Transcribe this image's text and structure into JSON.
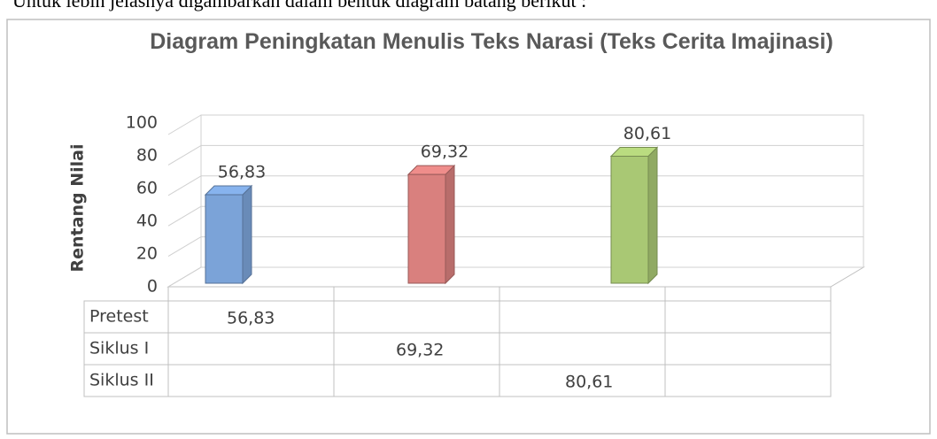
{
  "caption": "Untuk lebih jelasnya digambarkan dalam bentuk diagram batang berikut :",
  "chart_data": {
    "type": "bar",
    "title": "Diagram Peningkatan Menulis Teks Narasi (Teks Cerita Imajinasi)",
    "y_label": "Rentang Nilai",
    "categories": [
      null,
      null,
      null,
      null
    ],
    "series": [
      {
        "name": "Pretest",
        "color": "#7ba3d8",
        "values": [
          56.83,
          null,
          null,
          null
        ],
        "value_labels": [
          "56,83",
          null,
          null,
          null
        ]
      },
      {
        "name": "Siklus I",
        "color": "#d9807e",
        "values": [
          null,
          69.32,
          null,
          null
        ],
        "value_labels": [
          null,
          "69,32",
          null,
          null
        ]
      },
      {
        "name": "Siklus II",
        "color": "#a9c874",
        "values": [
          null,
          null,
          80.61,
          null
        ],
        "value_labels": [
          null,
          null,
          "80,61",
          null
        ]
      }
    ],
    "ylim": [
      0,
      100
    ],
    "yticks": [
      0,
      20,
      40,
      60,
      80,
      100
    ],
    "grid": true,
    "data_table": true
  }
}
